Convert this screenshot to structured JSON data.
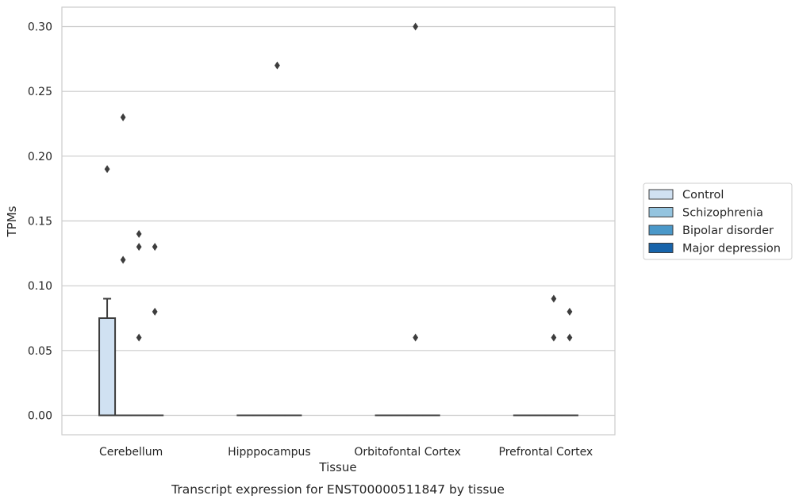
{
  "chart_data": {
    "type": "box",
    "caption": "Transcript expression for ENST00000511847 by tissue",
    "xlabel": "Tissue",
    "ylabel": "TPMs",
    "ylim": [
      -0.015,
      0.315
    ],
    "yticks": [
      "0.00",
      "0.05",
      "0.10",
      "0.15",
      "0.20",
      "0.25",
      "0.30"
    ],
    "ytick_values": [
      0,
      0.05,
      0.1,
      0.15,
      0.2,
      0.25,
      0.3
    ],
    "grid": true,
    "legend_position": "right",
    "categories": [
      "Cerebellum",
      "Hipppocampus",
      "Orbitofontal Cortex",
      "Prefrontal Cortex"
    ],
    "series": [
      {
        "name": "Control",
        "color": "#d0e1f2",
        "boxes": [
          {
            "q1": 0,
            "median": 0,
            "q3": 0.075,
            "whisker_low": 0,
            "whisker_high": 0.09,
            "outliers": [
              0.19
            ]
          },
          {
            "q1": 0,
            "median": 0,
            "q3": 0,
            "whisker_low": 0,
            "whisker_high": 0,
            "outliers": []
          },
          {
            "q1": 0,
            "median": 0,
            "q3": 0,
            "whisker_low": 0,
            "whisker_high": 0,
            "outliers": []
          },
          {
            "q1": 0,
            "median": 0,
            "q3": 0,
            "whisker_low": 0,
            "whisker_high": 0,
            "outliers": []
          }
        ]
      },
      {
        "name": "Schizophrenia",
        "color": "#94c4df",
        "boxes": [
          {
            "q1": 0,
            "median": 0,
            "q3": 0,
            "whisker_low": 0,
            "whisker_high": 0,
            "outliers": [
              0.23,
              0.12
            ]
          },
          {
            "q1": 0,
            "median": 0,
            "q3": 0,
            "whisker_low": 0,
            "whisker_high": 0,
            "outliers": []
          },
          {
            "q1": 0,
            "median": 0,
            "q3": 0,
            "whisker_low": 0,
            "whisker_high": 0,
            "outliers": []
          },
          {
            "q1": 0,
            "median": 0,
            "q3": 0,
            "whisker_low": 0,
            "whisker_high": 0,
            "outliers": []
          }
        ]
      },
      {
        "name": "Bipolar disorder",
        "color": "#4a98c9",
        "boxes": [
          {
            "q1": 0,
            "median": 0,
            "q3": 0,
            "whisker_low": 0,
            "whisker_high": 0,
            "outliers": [
              0.14,
              0.13,
              0.06
            ]
          },
          {
            "q1": 0,
            "median": 0,
            "q3": 0,
            "whisker_low": 0,
            "whisker_high": 0,
            "outliers": [
              0.27
            ]
          },
          {
            "q1": 0,
            "median": 0,
            "q3": 0,
            "whisker_low": 0,
            "whisker_high": 0,
            "outliers": [
              0.3,
              0.06
            ]
          },
          {
            "q1": 0,
            "median": 0,
            "q3": 0,
            "whisker_low": 0,
            "whisker_high": 0,
            "outliers": [
              0.09,
              0.06
            ]
          }
        ]
      },
      {
        "name": "Major depression",
        "color": "#1764ab",
        "boxes": [
          {
            "q1": 0,
            "median": 0,
            "q3": 0,
            "whisker_low": 0,
            "whisker_high": 0,
            "outliers": [
              0.13,
              0.08
            ]
          },
          {
            "q1": 0,
            "median": 0,
            "q3": 0,
            "whisker_low": 0,
            "whisker_high": 0,
            "outliers": []
          },
          {
            "q1": 0,
            "median": 0,
            "q3": 0,
            "whisker_low": 0,
            "whisker_high": 0,
            "outliers": []
          },
          {
            "q1": 0,
            "median": 0,
            "q3": 0,
            "whisker_low": 0,
            "whisker_high": 0,
            "outliers": [
              0.08,
              0.06
            ]
          }
        ]
      }
    ]
  }
}
